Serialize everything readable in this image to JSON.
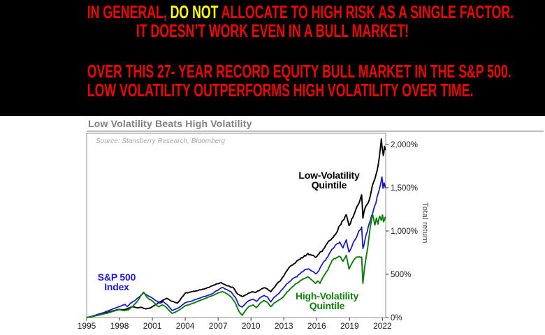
{
  "banner": {
    "background": "#000000",
    "text_color": "#ee0606",
    "highlight_color": "#ffff00",
    "line1_pre": "IN GENERAL, ",
    "line1_highlight": "DO NOT",
    "line1_post": " ALLOCATE TO HIGH RISK AS A SINGLE FACTOR.",
    "line2": "IT DOESN’T WORK EVEN IN A BULL MARKET!",
    "line3": "OVER THIS 27- YEAR RECORD EQUITY BULL MARKET IN THE S&P 500.",
    "line4": "LOW VOLATILITY OUTPERFORMS HIGH VOLATILITY OVER TIME."
  },
  "chart": {
    "title": "Low Volatility Beats High Volatility",
    "source_note": "Source: Stansberry Research, Bloomberg",
    "y_axis_title": "Total return",
    "labels": {
      "low_vol": {
        "line1": "Low-Volatility",
        "line2": "Quintile"
      },
      "sp500": {
        "line1": "S&P 500",
        "line2": "Index"
      },
      "high_vol": {
        "line1": "High-Volatility",
        "line2": "Quintile"
      }
    }
  },
  "chart_data": {
    "type": "line",
    "title": "Low Volatility Beats High Volatility",
    "xlabel": "",
    "ylabel": "Total return",
    "x_range": [
      1995,
      2022.3
    ],
    "y_range": [
      0,
      2130
    ],
    "grid": false,
    "legend_position": "inline-annotations",
    "x_ticks": [
      1995,
      1998,
      2001,
      2004,
      2007,
      2010,
      2013,
      2016,
      2019,
      2022
    ],
    "y_ticks": [
      {
        "value": 0,
        "label": "0%"
      },
      {
        "value": 500,
        "label": "500%"
      },
      {
        "value": 1000,
        "label": "1,000%"
      },
      {
        "value": 1500,
        "label": "1,500%"
      },
      {
        "value": 2000,
        "label": "2,000%"
      }
    ],
    "series": [
      {
        "name": "Low-Volatility Quintile",
        "color": "#000000",
        "width": 1.9,
        "points": [
          [
            1995,
            2
          ],
          [
            1995.5,
            12
          ],
          [
            1996,
            28
          ],
          [
            1996.5,
            45
          ],
          [
            1997,
            62
          ],
          [
            1997.5,
            80
          ],
          [
            1998,
            95
          ],
          [
            1998.4,
            88
          ],
          [
            1998.8,
            108
          ],
          [
            1999.2,
            125
          ],
          [
            1999.6,
            112
          ],
          [
            2000,
            118
          ],
          [
            2000.4,
            100
          ],
          [
            2000.8,
            110
          ],
          [
            2001.2,
            140
          ],
          [
            2001.6,
            175
          ],
          [
            2002,
            205
          ],
          [
            2002.3,
            225
          ],
          [
            2002.7,
            190
          ],
          [
            2003,
            178
          ],
          [
            2003.3,
            168
          ],
          [
            2003.7,
            235
          ],
          [
            2004,
            282
          ],
          [
            2004.5,
            295
          ],
          [
            2005,
            310
          ],
          [
            2005.5,
            322
          ],
          [
            2006,
            345
          ],
          [
            2006.5,
            368
          ],
          [
            2007,
            388
          ],
          [
            2007.3,
            403
          ],
          [
            2007.6,
            382
          ],
          [
            2008,
            365
          ],
          [
            2008.4,
            345
          ],
          [
            2008.8,
            272
          ],
          [
            2009.2,
            242
          ],
          [
            2009.5,
            262
          ],
          [
            2009.8,
            285
          ],
          [
            2010.1,
            300
          ],
          [
            2010.4,
            286
          ],
          [
            2010.8,
            316
          ],
          [
            2011.2,
            342
          ],
          [
            2011.5,
            330
          ],
          [
            2011.8,
            296
          ],
          [
            2012.1,
            340
          ],
          [
            2012.4,
            392
          ],
          [
            2012.7,
            425
          ],
          [
            2013,
            480
          ],
          [
            2013.3,
            540
          ],
          [
            2013.6,
            588
          ],
          [
            2014,
            622
          ],
          [
            2014.4,
            662
          ],
          [
            2014.8,
            702
          ],
          [
            2015.2,
            740
          ],
          [
            2015.5,
            722
          ],
          [
            2015.9,
            692
          ],
          [
            2016.3,
            762
          ],
          [
            2016.7,
            805
          ],
          [
            2017,
            868
          ],
          [
            2017.4,
            920
          ],
          [
            2017.8,
            982
          ],
          [
            2018.1,
            1060
          ],
          [
            2018.4,
            1120
          ],
          [
            2018.7,
            1185
          ],
          [
            2018.95,
            1062
          ],
          [
            2019.2,
            1150
          ],
          [
            2019.5,
            1230
          ],
          [
            2019.8,
            1302
          ],
          [
            2020.1,
            1420
          ],
          [
            2020.22,
            1142
          ],
          [
            2020.4,
            1252
          ],
          [
            2020.6,
            1302
          ],
          [
            2020.8,
            1362
          ],
          [
            2021,
            1482
          ],
          [
            2021.2,
            1562
          ],
          [
            2021.4,
            1652
          ],
          [
            2021.6,
            1762
          ],
          [
            2021.8,
            1952
          ],
          [
            2021.9,
            2068
          ],
          [
            2022,
            1948
          ],
          [
            2022.08,
            1872
          ],
          [
            2022.18,
            1992
          ],
          [
            2022.25,
            1945
          ]
        ]
      },
      {
        "name": "S&P 500 Index",
        "color": "#1212cf",
        "width": 1.7,
        "points": [
          [
            1995,
            2
          ],
          [
            1995.5,
            15
          ],
          [
            1996,
            35
          ],
          [
            1996.5,
            55
          ],
          [
            1997,
            80
          ],
          [
            1997.5,
            105
          ],
          [
            1998,
            128
          ],
          [
            1998.5,
            152
          ],
          [
            1998.7,
            126
          ],
          [
            1999,
            166
          ],
          [
            1999.4,
            196
          ],
          [
            1999.8,
            238
          ],
          [
            2000.2,
            282
          ],
          [
            2000.5,
            262
          ],
          [
            2000.8,
            242
          ],
          [
            2001.1,
            215
          ],
          [
            2001.4,
            192
          ],
          [
            2001.7,
            165
          ],
          [
            2002,
            186
          ],
          [
            2002.4,
            142
          ],
          [
            2002.8,
            82
          ],
          [
            2003.1,
            96
          ],
          [
            2003.5,
            122
          ],
          [
            2004,
            170
          ],
          [
            2004.5,
            186
          ],
          [
            2005,
            210
          ],
          [
            2005.5,
            235
          ],
          [
            2006,
            255
          ],
          [
            2006.5,
            280
          ],
          [
            2007,
            318
          ],
          [
            2007.4,
            345
          ],
          [
            2007.8,
            322
          ],
          [
            2008.2,
            292
          ],
          [
            2008.6,
            232
          ],
          [
            2008.9,
            142
          ],
          [
            2009.2,
            120
          ],
          [
            2009.5,
            162
          ],
          [
            2009.8,
            196
          ],
          [
            2010.2,
            212
          ],
          [
            2010.5,
            186
          ],
          [
            2010.8,
            226
          ],
          [
            2011.2,
            256
          ],
          [
            2011.5,
            242
          ],
          [
            2011.8,
            182
          ],
          [
            2012.1,
            232
          ],
          [
            2012.5,
            272
          ],
          [
            2012.9,
            330
          ],
          [
            2013.2,
            382
          ],
          [
            2013.6,
            420
          ],
          [
            2014,
            462
          ],
          [
            2014.4,
            502
          ],
          [
            2014.8,
            540
          ],
          [
            2015.2,
            565
          ],
          [
            2015.6,
            532
          ],
          [
            2015.9,
            502
          ],
          [
            2016.2,
            542
          ],
          [
            2016.6,
            640
          ],
          [
            2017,
            700
          ],
          [
            2017.4,
            790
          ],
          [
            2017.8,
            842
          ],
          [
            2018.1,
            880
          ],
          [
            2018.4,
            810
          ],
          [
            2018.7,
            900
          ],
          [
            2018.95,
            762
          ],
          [
            2019.3,
            862
          ],
          [
            2019.6,
            922
          ],
          [
            2019.9,
            1002
          ],
          [
            2020.1,
            1052
          ],
          [
            2020.22,
            802
          ],
          [
            2020.4,
            902
          ],
          [
            2020.6,
            982
          ],
          [
            2020.8,
            1082
          ],
          [
            2021,
            1182
          ],
          [
            2021.2,
            1262
          ],
          [
            2021.4,
            1322
          ],
          [
            2021.6,
            1422
          ],
          [
            2021.8,
            1522
          ],
          [
            2021.95,
            1628
          ],
          [
            2022.05,
            1482
          ],
          [
            2022.15,
            1558
          ],
          [
            2022.25,
            1498
          ]
        ]
      },
      {
        "name": "High-Volatility Quintile",
        "color": "#0b7d0b",
        "width": 1.9,
        "points": [
          [
            1995,
            2
          ],
          [
            1995.5,
            10
          ],
          [
            1996,
            25
          ],
          [
            1996.5,
            40
          ],
          [
            1997,
            55
          ],
          [
            1997.5,
            75
          ],
          [
            1998,
            92
          ],
          [
            1998.4,
            80
          ],
          [
            1998.8,
            88
          ],
          [
            1999.2,
            130
          ],
          [
            1999.6,
            185
          ],
          [
            2000,
            262
          ],
          [
            2000.2,
            295
          ],
          [
            2000.4,
            252
          ],
          [
            2000.7,
            215
          ],
          [
            2001,
            190
          ],
          [
            2001.3,
            150
          ],
          [
            2001.6,
            125
          ],
          [
            2001.9,
            146
          ],
          [
            2002.2,
            126
          ],
          [
            2002.5,
            86
          ],
          [
            2002.8,
            48
          ],
          [
            2003.1,
            62
          ],
          [
            2003.5,
            92
          ],
          [
            2004,
            138
          ],
          [
            2004.5,
            155
          ],
          [
            2005,
            180
          ],
          [
            2005.5,
            205
          ],
          [
            2006,
            230
          ],
          [
            2006.5,
            255
          ],
          [
            2007,
            286
          ],
          [
            2007.4,
            302
          ],
          [
            2007.8,
            276
          ],
          [
            2008.2,
            236
          ],
          [
            2008.6,
            162
          ],
          [
            2008.9,
            72
          ],
          [
            2009.2,
            27
          ],
          [
            2009.5,
            82
          ],
          [
            2009.8,
            126
          ],
          [
            2010.2,
            146
          ],
          [
            2010.5,
            116
          ],
          [
            2010.8,
            162
          ],
          [
            2011.2,
            196
          ],
          [
            2011.5,
            176
          ],
          [
            2011.8,
            126
          ],
          [
            2012.1,
            166
          ],
          [
            2012.5,
            198
          ],
          [
            2012.9,
            235
          ],
          [
            2013.2,
            282
          ],
          [
            2013.6,
            332
          ],
          [
            2014,
            382
          ],
          [
            2014.4,
            416
          ],
          [
            2014.8,
            446
          ],
          [
            2015.2,
            470
          ],
          [
            2015.5,
            442
          ],
          [
            2015.9,
            398
          ],
          [
            2016.1,
            422
          ],
          [
            2016.3,
            392
          ],
          [
            2016.6,
            470
          ],
          [
            2017,
            542
          ],
          [
            2017.4,
            660
          ],
          [
            2017.8,
            692
          ],
          [
            2018.1,
            702
          ],
          [
            2018.4,
            652
          ],
          [
            2018.7,
            722
          ],
          [
            2018.95,
            562
          ],
          [
            2019.3,
            642
          ],
          [
            2019.6,
            692
          ],
          [
            2019.9,
            702
          ],
          [
            2020.1,
            702
          ],
          [
            2020.22,
            400
          ],
          [
            2020.35,
            562
          ],
          [
            2020.5,
            682
          ],
          [
            2020.65,
            802
          ],
          [
            2020.8,
            952
          ],
          [
            2020.95,
            1082
          ],
          [
            2021.1,
            1185
          ],
          [
            2021.3,
            1062
          ],
          [
            2021.45,
            1152
          ],
          [
            2021.6,
            1082
          ],
          [
            2021.75,
            1162
          ],
          [
            2021.9,
            1122
          ],
          [
            2022,
            1182
          ],
          [
            2022.1,
            1102
          ],
          [
            2022.25,
            1162
          ]
        ]
      }
    ]
  }
}
